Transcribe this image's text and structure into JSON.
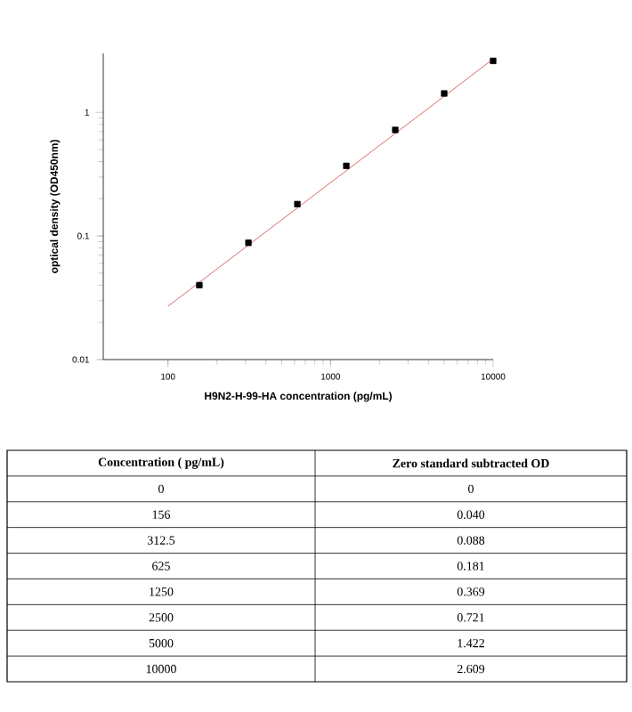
{
  "chart_data": {
    "type": "scatter",
    "xlabel": "H9N2-H-99-HA concentration (pg/mL)",
    "ylabel": "optical density (OD450nm)",
    "log": "xy",
    "xlim": [
      40,
      10000
    ],
    "ylim": [
      0.01,
      3
    ],
    "xticks": [
      100,
      1000,
      10000
    ],
    "yticks": [
      0.01,
      0.1,
      1
    ],
    "series": [
      {
        "color": "#000000",
        "marker": "square",
        "x": [
          156,
          312.5,
          625,
          1250,
          2500,
          5000,
          10000
        ],
        "values": [
          0.04,
          0.088,
          0.181,
          0.369,
          0.721,
          1.422,
          2.609
        ]
      },
      {
        "type": "line",
        "color": "#e06666",
        "marker": "none",
        "line_style": "solid",
        "x": [
          100,
          10000
        ],
        "values": [
          0.027,
          2.7
        ]
      }
    ],
    "annotations": [
      "Concentration ( pg/mL)",
      "Zero standard subtracted OD",
      "0",
      "0",
      "156",
      "0.040",
      "312.5",
      "0.088",
      "625",
      "0.181",
      "1250",
      "0.369",
      "2500",
      "0.721",
      "5000",
      "1.422",
      "10000",
      "2.609"
    ]
  }
}
